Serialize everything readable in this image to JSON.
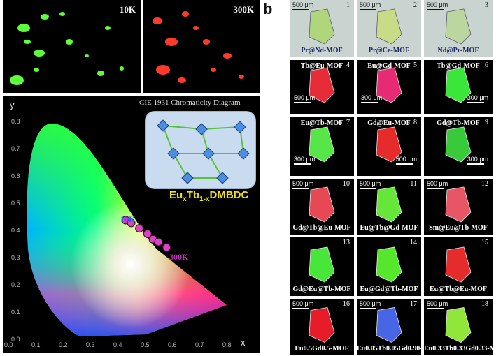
{
  "panel_a": {
    "letter": "a",
    "images": [
      {
        "label": "10K"
      },
      {
        "label": "300K"
      }
    ],
    "cie": {
      "title": "CIE 1931 Chromaticity Diagram",
      "formula": {
        "base": "Eu",
        "sub1": "x",
        "mid": "Tb",
        "sub2": "1-x",
        "tail": "DMBDC"
      },
      "label_low": "10K",
      "label_high": "300K",
      "y_axis": "y",
      "x_axis": "x",
      "x_ticks": [
        "0.0",
        "0.1",
        "0.2",
        "0.3",
        "0.4",
        "0.5",
        "0.6",
        "0.7",
        "0.8"
      ],
      "y_ticks": [
        "0.0",
        "0.1",
        "0.2",
        "0.3",
        "0.4",
        "0.5",
        "0.6",
        "0.7",
        "0.8"
      ],
      "points": [
        [
          0.43,
          0.44
        ],
        [
          0.45,
          0.43
        ],
        [
          0.48,
          0.41
        ],
        [
          0.51,
          0.39
        ],
        [
          0.53,
          0.37
        ],
        [
          0.55,
          0.36
        ],
        [
          0.58,
          0.34
        ]
      ]
    }
  },
  "panel_b": {
    "letter": "b",
    "cells": [
      {
        "num": "1",
        "name": "Pr@Nd-MOF",
        "scale": "500 μm"
      },
      {
        "num": "2",
        "name": "Pr@Ce-MOF",
        "scale": "500 μm"
      },
      {
        "num": "3",
        "name": "Nd@Pr-MOF",
        "scale": "500 μm"
      },
      {
        "num": "4",
        "name": "Tb@Eu-MOF",
        "scale": "500 μm"
      },
      {
        "num": "5",
        "name": "Eu@Gd-MOF",
        "scale": "300 μm"
      },
      {
        "num": "6",
        "name": "Tb@Gd-MOF",
        "scale": "300 μm"
      },
      {
        "num": "7",
        "name": "Eu@Tb-MOF",
        "scale": "300 μm"
      },
      {
        "num": "8",
        "name": "Gd@Eu-MOF",
        "scale": "500 μm"
      },
      {
        "num": "9",
        "name": "Gd@Tb-MOF",
        "scale": "300 μm"
      },
      {
        "num": "10",
        "name": "Gd@Tb@Eu-MOF",
        "scale": "500 μm"
      },
      {
        "num": "11",
        "name": "Eu@Tb@Gd-MOF",
        "scale": "500 μm"
      },
      {
        "num": "12",
        "name": "Sm@Eu@Tb-MOF",
        "scale": "500 μm"
      },
      {
        "num": "13",
        "name": "Gd@Eu@Tb-MOF",
        "scale": ""
      },
      {
        "num": "14",
        "name": "Eu@Gd@Tb-MOF",
        "scale": ""
      },
      {
        "num": "15",
        "name": "Eu@Tb@Eu-MOF",
        "scale": ""
      },
      {
        "num": "16",
        "name": "Eu0.5Gd0.5-MOF",
        "scale": "500 μm"
      },
      {
        "num": "17",
        "name": "Eu0.05Tb0.05Gd0.90-MOF",
        "scale": "500 μm"
      },
      {
        "num": "18",
        "name": "Eu0.33Tb0.33Gd0.33-MOF",
        "scale": "500 μm"
      }
    ]
  },
  "colors": {
    "red": "#ff2a2a",
    "green": "#4cff3a",
    "marker": "#e040c8"
  }
}
